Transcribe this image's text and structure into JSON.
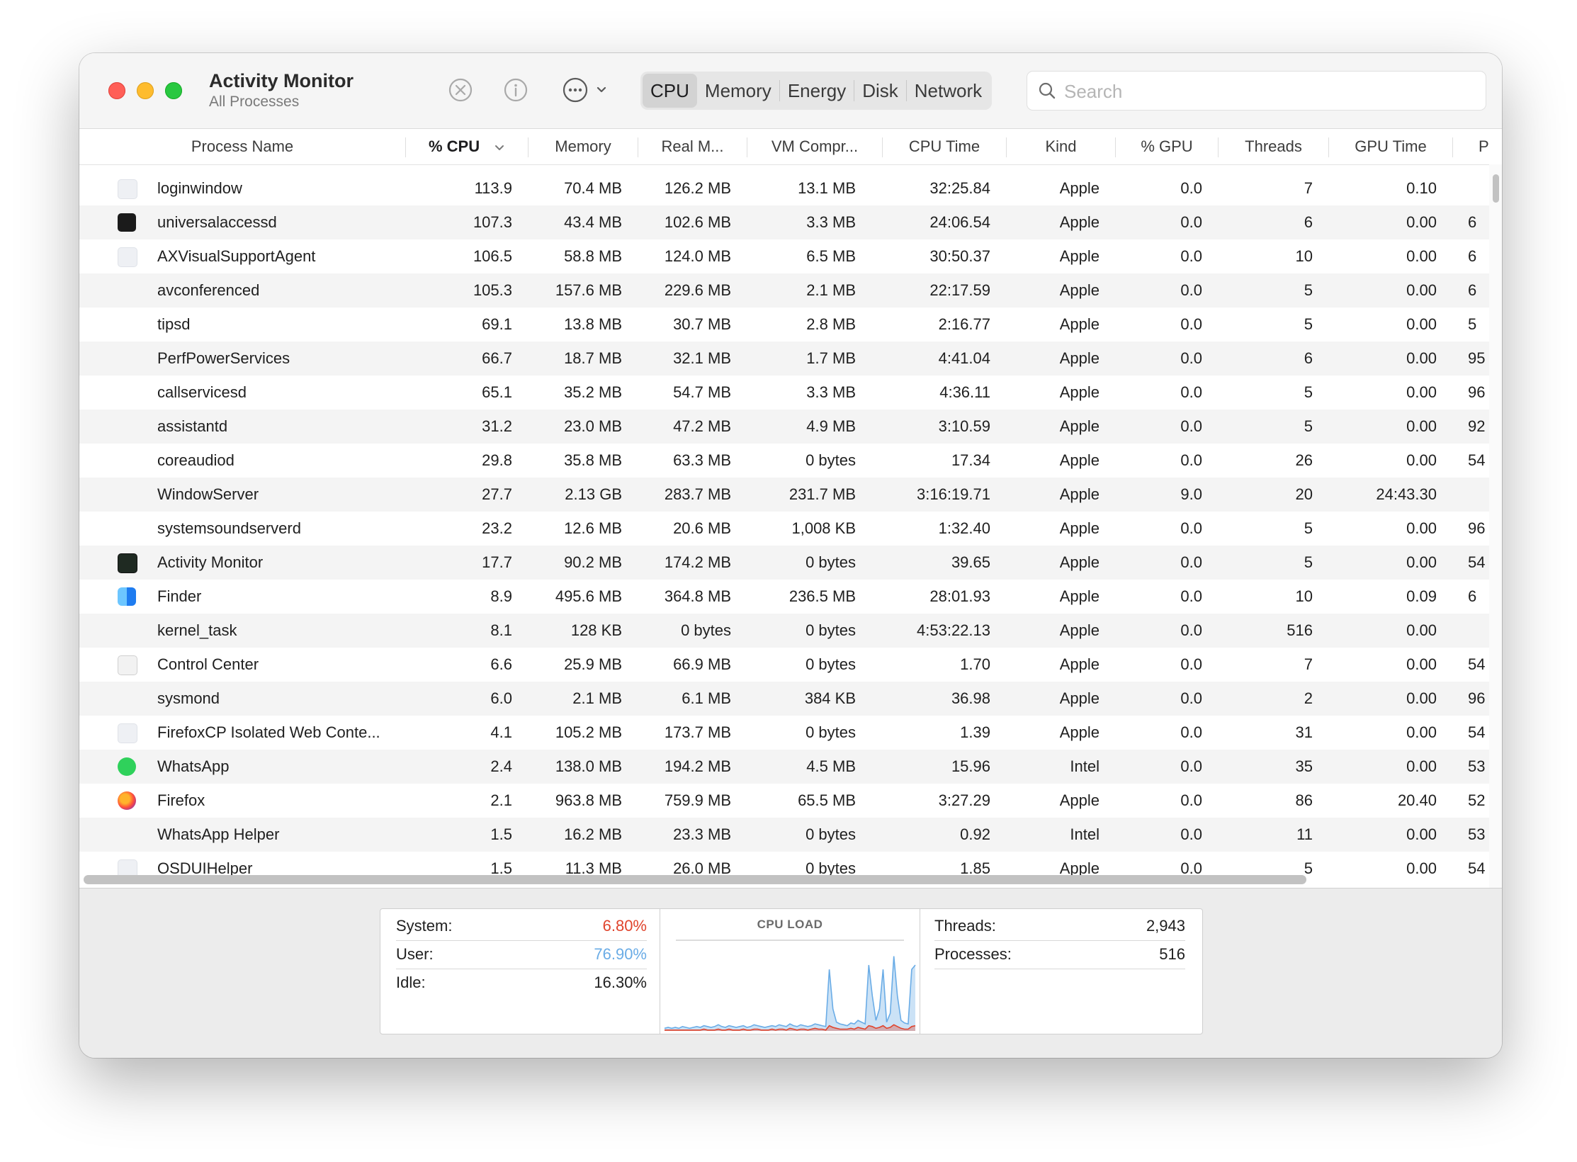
{
  "window": {
    "title": "Activity Monitor",
    "subtitle": "All Processes"
  },
  "toolbar": {
    "stop_icon": "stop-x-icon",
    "info_icon": "info-icon",
    "more_icon": "ellipsis-circle-icon",
    "tabs": [
      "CPU",
      "Memory",
      "Energy",
      "Disk",
      "Network"
    ],
    "active_tab": "CPU",
    "search_placeholder": "Search"
  },
  "columns": [
    "Process Name",
    "% CPU",
    "Memory",
    "Real M...",
    "VM Compr...",
    "CPU Time",
    "Kind",
    "% GPU",
    "Threads",
    "GPU Time",
    "P"
  ],
  "sorted_column": "% CPU",
  "rows": [
    {
      "icon": "generic-app-icon",
      "name": "loginwindow",
      "cpu": "113.9",
      "memory": "70.4 MB",
      "real": "126.2 MB",
      "vm": "13.1 MB",
      "cputime": "32:25.84",
      "kind": "Apple",
      "gpu": "0.0",
      "threads": "7",
      "gputime": "0.10",
      "pid": ""
    },
    {
      "icon": "terminal-icon",
      "name": "universalaccessd",
      "cpu": "107.3",
      "memory": "43.4 MB",
      "real": "102.6 MB",
      "vm": "3.3 MB",
      "cputime": "24:06.54",
      "kind": "Apple",
      "gpu": "0.0",
      "threads": "6",
      "gputime": "0.00",
      "pid": "6"
    },
    {
      "icon": "generic-app-icon",
      "name": "AXVisualSupportAgent",
      "cpu": "106.5",
      "memory": "58.8 MB",
      "real": "124.0 MB",
      "vm": "6.5 MB",
      "cputime": "30:50.37",
      "kind": "Apple",
      "gpu": "0.0",
      "threads": "10",
      "gputime": "0.00",
      "pid": "6"
    },
    {
      "icon": "",
      "name": "avconferenced",
      "cpu": "105.3",
      "memory": "157.6 MB",
      "real": "229.6 MB",
      "vm": "2.1 MB",
      "cputime": "22:17.59",
      "kind": "Apple",
      "gpu": "0.0",
      "threads": "5",
      "gputime": "0.00",
      "pid": "6"
    },
    {
      "icon": "",
      "name": "tipsd",
      "cpu": "69.1",
      "memory": "13.8 MB",
      "real": "30.7 MB",
      "vm": "2.8 MB",
      "cputime": "2:16.77",
      "kind": "Apple",
      "gpu": "0.0",
      "threads": "5",
      "gputime": "0.00",
      "pid": "5"
    },
    {
      "icon": "",
      "name": "PerfPowerServices",
      "cpu": "66.7",
      "memory": "18.7 MB",
      "real": "32.1 MB",
      "vm": "1.7 MB",
      "cputime": "4:41.04",
      "kind": "Apple",
      "gpu": "0.0",
      "threads": "6",
      "gputime": "0.00",
      "pid": "95"
    },
    {
      "icon": "",
      "name": "callservicesd",
      "cpu": "65.1",
      "memory": "35.2 MB",
      "real": "54.7 MB",
      "vm": "3.3 MB",
      "cputime": "4:36.11",
      "kind": "Apple",
      "gpu": "0.0",
      "threads": "5",
      "gputime": "0.00",
      "pid": "96"
    },
    {
      "icon": "",
      "name": "assistantd",
      "cpu": "31.2",
      "memory": "23.0 MB",
      "real": "47.2 MB",
      "vm": "4.9 MB",
      "cputime": "3:10.59",
      "kind": "Apple",
      "gpu": "0.0",
      "threads": "5",
      "gputime": "0.00",
      "pid": "92"
    },
    {
      "icon": "",
      "name": "coreaudiod",
      "cpu": "29.8",
      "memory": "35.8 MB",
      "real": "63.3 MB",
      "vm": "0 bytes",
      "cputime": "17.34",
      "kind": "Apple",
      "gpu": "0.0",
      "threads": "26",
      "gputime": "0.00",
      "pid": "54"
    },
    {
      "icon": "",
      "name": "WindowServer",
      "cpu": "27.7",
      "memory": "2.13 GB",
      "real": "283.7 MB",
      "vm": "231.7 MB",
      "cputime": "3:16:19.71",
      "kind": "Apple",
      "gpu": "9.0",
      "threads": "20",
      "gputime": "24:43.30",
      "pid": ""
    },
    {
      "icon": "",
      "name": "systemsoundserverd",
      "cpu": "23.2",
      "memory": "12.6 MB",
      "real": "20.6 MB",
      "vm": "1,008 KB",
      "cputime": "1:32.40",
      "kind": "Apple",
      "gpu": "0.0",
      "threads": "5",
      "gputime": "0.00",
      "pid": "96"
    },
    {
      "icon": "activity-monitor-icon",
      "name": "Activity Monitor",
      "cpu": "17.7",
      "memory": "90.2 MB",
      "real": "174.2 MB",
      "vm": "0 bytes",
      "cputime": "39.65",
      "kind": "Apple",
      "gpu": "0.0",
      "threads": "5",
      "gputime": "0.00",
      "pid": "54"
    },
    {
      "icon": "finder-icon",
      "name": "Finder",
      "cpu": "8.9",
      "memory": "495.6 MB",
      "real": "364.8 MB",
      "vm": "236.5 MB",
      "cputime": "28:01.93",
      "kind": "Apple",
      "gpu": "0.0",
      "threads": "10",
      "gputime": "0.09",
      "pid": "6"
    },
    {
      "icon": "",
      "name": "kernel_task",
      "cpu": "8.1",
      "memory": "128 KB",
      "real": "0 bytes",
      "vm": "0 bytes",
      "cputime": "4:53:22.13",
      "kind": "Apple",
      "gpu": "0.0",
      "threads": "516",
      "gputime": "0.00",
      "pid": ""
    },
    {
      "icon": "control-center-icon",
      "name": "Control Center",
      "cpu": "6.6",
      "memory": "25.9 MB",
      "real": "66.9 MB",
      "vm": "0 bytes",
      "cputime": "1.70",
      "kind": "Apple",
      "gpu": "0.0",
      "threads": "7",
      "gputime": "0.00",
      "pid": "54"
    },
    {
      "icon": "",
      "name": "sysmond",
      "cpu": "6.0",
      "memory": "2.1 MB",
      "real": "6.1 MB",
      "vm": "384 KB",
      "cputime": "36.98",
      "kind": "Apple",
      "gpu": "0.0",
      "threads": "2",
      "gputime": "0.00",
      "pid": "96"
    },
    {
      "icon": "generic-app-icon",
      "name": "FirefoxCP Isolated Web Conte...",
      "cpu": "4.1",
      "memory": "105.2 MB",
      "real": "173.7 MB",
      "vm": "0 bytes",
      "cputime": "1.39",
      "kind": "Apple",
      "gpu": "0.0",
      "threads": "31",
      "gputime": "0.00",
      "pid": "54"
    },
    {
      "icon": "whatsapp-icon",
      "name": "WhatsApp",
      "cpu": "2.4",
      "memory": "138.0 MB",
      "real": "194.2 MB",
      "vm": "4.5 MB",
      "cputime": "15.96",
      "kind": "Intel",
      "gpu": "0.0",
      "threads": "35",
      "gputime": "0.00",
      "pid": "53"
    },
    {
      "icon": "firefox-icon",
      "name": "Firefox",
      "cpu": "2.1",
      "memory": "963.8 MB",
      "real": "759.9 MB",
      "vm": "65.5 MB",
      "cputime": "3:27.29",
      "kind": "Apple",
      "gpu": "0.0",
      "threads": "86",
      "gputime": "20.40",
      "pid": "52"
    },
    {
      "icon": "",
      "name": "WhatsApp Helper",
      "cpu": "1.5",
      "memory": "16.2 MB",
      "real": "23.3 MB",
      "vm": "0 bytes",
      "cputime": "0.92",
      "kind": "Intel",
      "gpu": "0.0",
      "threads": "11",
      "gputime": "0.00",
      "pid": "53"
    },
    {
      "icon": "generic-app-icon",
      "name": "OSDUIHelper",
      "cpu": "1.5",
      "memory": "11.3 MB",
      "real": "26.0 MB",
      "vm": "0 bytes",
      "cputime": "1.85",
      "kind": "Apple",
      "gpu": "0.0",
      "threads": "5",
      "gputime": "0.00",
      "pid": "54"
    }
  ],
  "summary": {
    "system_label": "System:",
    "system_value": "6.80%",
    "user_label": "User:",
    "user_value": "76.90%",
    "idle_label": "Idle:",
    "idle_value": "16.30%",
    "graph_title": "CPU LOAD",
    "threads_label": "Threads:",
    "threads_value": "2,943",
    "processes_label": "Processes:",
    "processes_value": "516"
  },
  "cpu_load_graph": {
    "system_color": "#e0442d",
    "user_color": "#6aace6",
    "user_series": [
      3,
      4,
      3,
      4,
      3,
      5,
      4,
      3,
      4,
      5,
      4,
      6,
      5,
      4,
      5,
      7,
      5,
      4,
      6,
      5,
      4,
      5,
      6,
      4,
      5,
      7,
      6,
      5,
      4,
      5,
      6,
      5,
      7,
      6,
      5,
      8,
      6,
      5,
      7,
      6,
      5,
      6,
      8,
      7,
      6,
      5,
      70,
      25,
      10,
      8,
      7,
      6,
      9,
      8,
      12,
      10,
      8,
      75,
      40,
      12,
      25,
      70,
      10,
      20,
      85,
      40,
      12,
      9,
      8,
      70,
      75
    ],
    "system_series": [
      1,
      1,
      1,
      1,
      1,
      1,
      1,
      1,
      1,
      1,
      1,
      2,
      1,
      1,
      1,
      2,
      1,
      1,
      2,
      1,
      1,
      1,
      2,
      1,
      1,
      2,
      2,
      1,
      1,
      1,
      2,
      1,
      2,
      2,
      1,
      3,
      2,
      1,
      2,
      2,
      1,
      2,
      3,
      2,
      2,
      1,
      6,
      4,
      3,
      2,
      2,
      2,
      3,
      2,
      4,
      3,
      2,
      6,
      5,
      3,
      4,
      6,
      3,
      4,
      7,
      5,
      3,
      2,
      2,
      5,
      6
    ]
  },
  "colors": {
    "close": "#ff5f57",
    "minimize": "#febc2e",
    "maximize": "#28c840",
    "row_alt": "#f4f4f4",
    "system_value": "#e0442d",
    "user_value": "#6aace6"
  }
}
